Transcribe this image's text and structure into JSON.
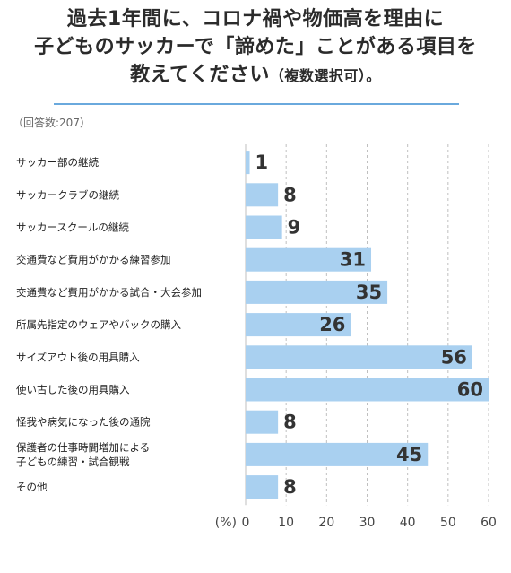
{
  "header": {
    "title_lines": [
      "過去1年間に、コロナ禍や物価高を理由に",
      "子どものサッカーで「諦めた」ことがある項目を",
      "教えてください"
    ],
    "title_suffix": "（複数選択可）。",
    "respondents_note": "（回答数:207）"
  },
  "chart_data": {
    "type": "bar",
    "orientation": "horizontal",
    "categories": [
      "サッカー部の継続",
      "サッカークラブの継続",
      "サッカースクールの継続",
      "交通費など費用がかかる練習参加",
      "交通費など費用がかかる試合・大会参加",
      "所属先指定のウェアやバックの購入",
      "サイズアウト後の用具購入",
      "使い古した後の用具購入",
      "怪我や病気になった後の通院",
      "保護者の仕事時間増加による\n子どもの練習・試合観戦",
      "その他"
    ],
    "values": [
      1,
      8,
      9,
      31,
      35,
      26,
      56,
      60,
      8,
      45,
      8
    ],
    "xlabel": "(%)",
    "xlim": [
      0,
      60
    ],
    "ticks": [
      0,
      10,
      20,
      30,
      40,
      50,
      60
    ],
    "grid": "vertical dashed",
    "colors": {
      "bar": "#a9d0f0",
      "grid": "#bfbfbf",
      "rule": "#6aa9dd"
    }
  }
}
